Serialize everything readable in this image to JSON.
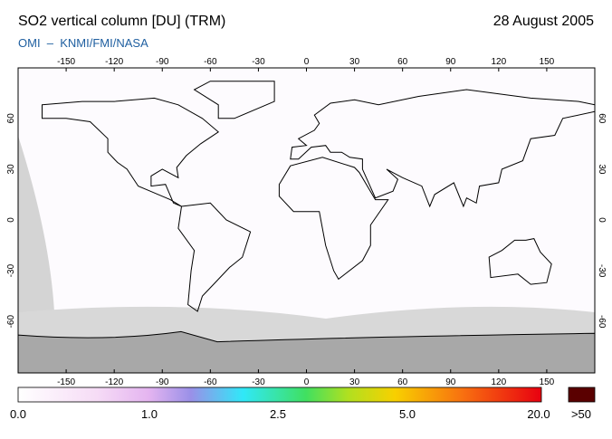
{
  "header": {
    "title": "SO2 vertical column [DU] (TRM)",
    "date": "28 August 2005",
    "source": "OMI  –  KNMI/FMI/NASA"
  },
  "map": {
    "lon_labels": [
      -150,
      -120,
      -90,
      -60,
      -30,
      0,
      30,
      60,
      90,
      120,
      150
    ],
    "lat_labels": [
      -60,
      -30,
      0,
      30,
      60
    ]
  },
  "colorbar": {
    "labels": [
      "0.0",
      "1.0",
      "2.5",
      "5.0",
      "20.0"
    ],
    "overflow_label": ">50"
  }
}
